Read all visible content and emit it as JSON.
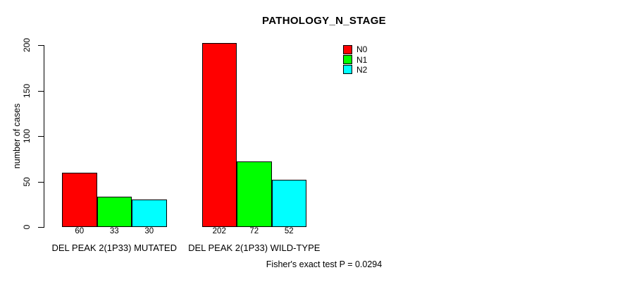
{
  "chart_data": {
    "type": "bar",
    "title": "PATHOLOGY_N_STAGE",
    "ylabel": "number of cases",
    "xlabel": "",
    "ylim": [
      0,
      200
    ],
    "yticks": [
      0,
      50,
      100,
      150,
      200
    ],
    "grid": false,
    "legend": {
      "position": "inside-top",
      "entries": [
        "N0",
        "N1",
        "N2"
      ]
    },
    "categories": [
      "DEL PEAK 2(1P33) MUTATED",
      "DEL PEAK 2(1P33) WILD-TYPE"
    ],
    "series": [
      {
        "name": "N0",
        "color": "#ff0000",
        "values": [
          60,
          202
        ]
      },
      {
        "name": "N1",
        "color": "#00ff00",
        "values": [
          33,
          72
        ]
      },
      {
        "name": "N2",
        "color": "#00ffff",
        "values": [
          30,
          52
        ]
      }
    ],
    "bar_value_labels": [
      [
        60,
        33,
        30
      ],
      [
        202,
        72,
        52
      ]
    ],
    "annotation": "Fisher's exact test P = 0.0294"
  },
  "style": {
    "background": "#ffffff",
    "text_color": "#000000",
    "bar_border_color": "#000000",
    "axis_color": "#000000"
  }
}
